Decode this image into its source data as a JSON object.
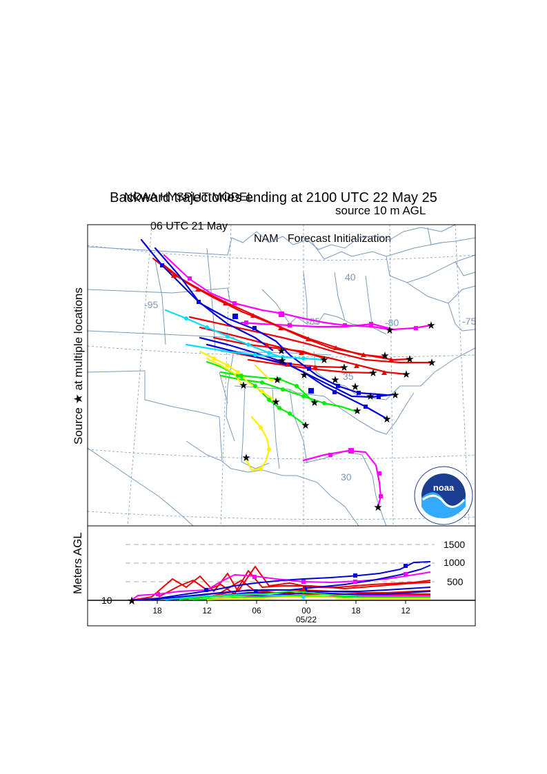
{
  "header": {
    "model": "NOAA HYSPLIT MODEL",
    "source": "source 10 m AGL",
    "title": "Backward trajectories ending at 2100 UTC 22 May 25",
    "init_time": "06 UTC 21 May",
    "init_model": "NAM   Forecast Initialization"
  },
  "map": {
    "side_label_prefix": "Source",
    "side_label_suffix": "at multiple locations",
    "star_symbol": "★",
    "lat_labels": [
      "40",
      "35",
      "30"
    ],
    "lon_labels": [
      "-95",
      "-85",
      "-80",
      "-75"
    ],
    "logo_text": "noaa"
  },
  "profile": {
    "ylabel": "Meters AGL",
    "y_ticks": [
      "1500",
      "1000",
      "500"
    ],
    "base_label": "10",
    "x_ticks": [
      "18",
      "12",
      "06",
      "00",
      "18",
      "12"
    ],
    "date_label": "05/22"
  },
  "colors": {
    "red": "#ee0000",
    "blue": "#0000dd",
    "magenta": "#ff00ff",
    "cyan": "#00ddff",
    "green": "#00ee00",
    "yellow": "#ffee00",
    "map_lines": "#7799bb",
    "grid": "#aaaaaa"
  }
}
